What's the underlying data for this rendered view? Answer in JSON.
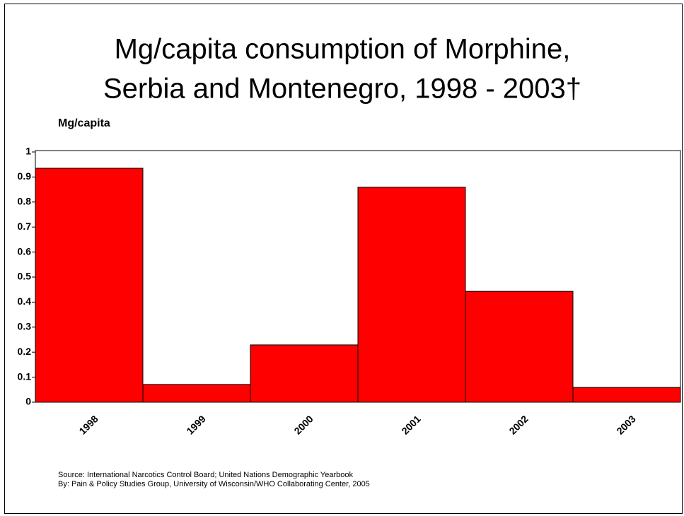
{
  "chart_data": {
    "type": "bar",
    "title": [
      "Mg/capita consumption of Morphine,",
      "Serbia and Montenegro, 1998 - 2003†"
    ],
    "y_label": "Mg/capita",
    "categories": [
      "1998",
      "1999",
      "2000",
      "2001",
      "2002",
      "2003"
    ],
    "values": [
      0.935,
      0.071,
      0.229,
      0.859,
      0.443,
      0.059
    ],
    "color": "#ff0000",
    "ylim": [
      0,
      1
    ],
    "yticks": [
      0,
      0.1,
      0.2,
      0.3,
      0.4,
      0.5,
      0.6,
      0.7,
      0.8,
      0.9,
      1
    ],
    "notes": [
      "Source: International Narcotics Control Board; United Nations Demographic Yearbook",
      "By: Pain & Policy Studies Group, University of Wisconsin/WHO Collaborating Center,  2005"
    ]
  }
}
